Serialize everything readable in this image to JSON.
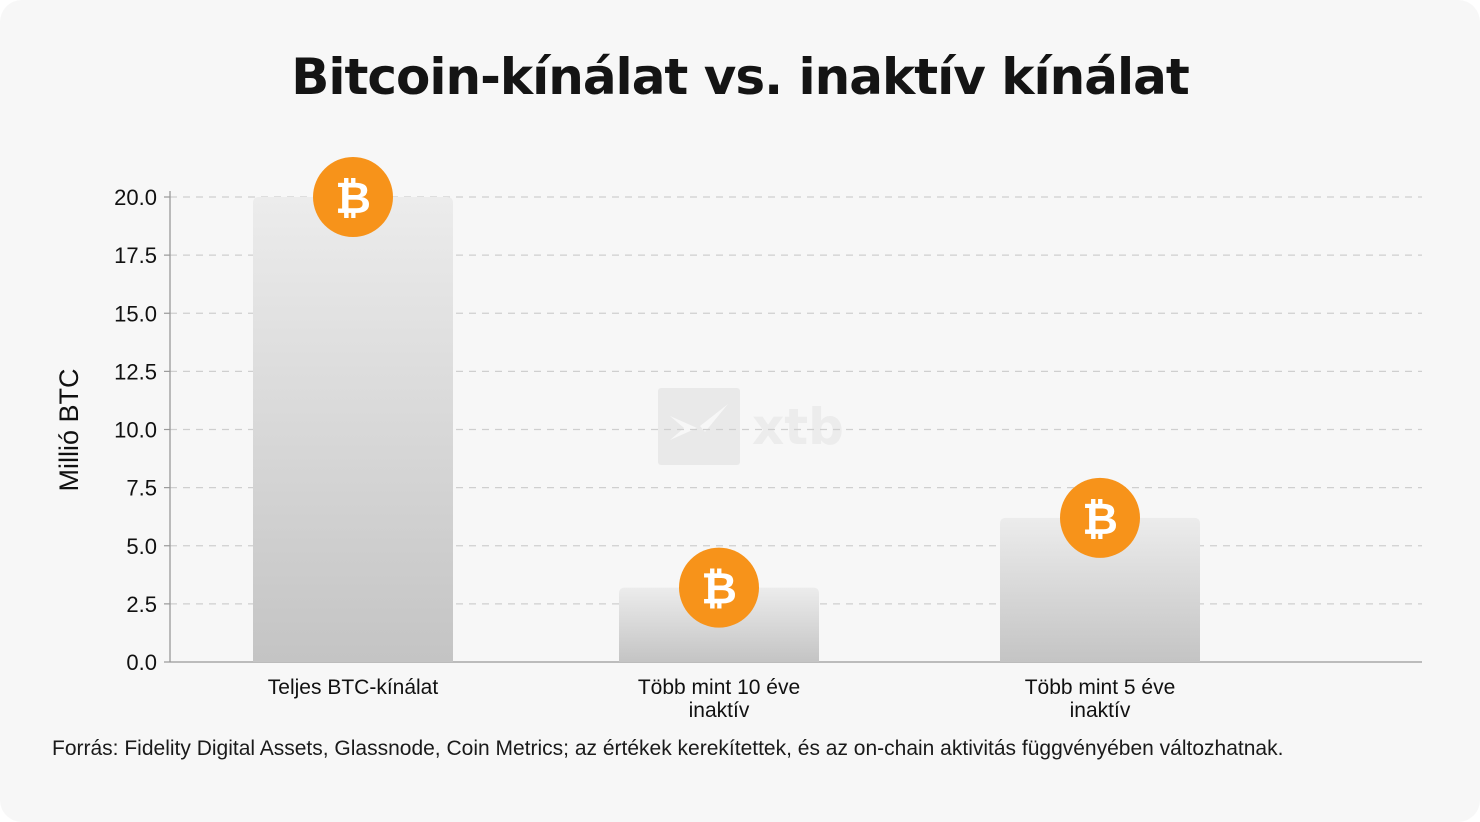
{
  "title": "Bitcoin-kínálat vs. inaktív kínálat",
  "watermark": "xtb",
  "source_note": "Forrás: Fidelity Digital Assets, Glassnode, Coin Metrics; az értékek kerekítettek, és az on-chain aktivitás függvényében változhatnak.",
  "coin_symbol": "₿",
  "colors": {
    "coin": "#F7931A",
    "bar_top": "#ececec",
    "bar_bottom": "#c4c4c4",
    "grid": "#cfcfcf"
  },
  "chart_data": {
    "type": "bar",
    "categories": [
      [
        "Teljes BTC-kínálat"
      ],
      [
        "Több mint 10 éve",
        "inaktív"
      ],
      [
        "Több mint 5 éve",
        "inaktív"
      ]
    ],
    "values": [
      20.0,
      3.2,
      6.2
    ],
    "ylabel": "Millió BTC",
    "xlabel": "",
    "ylim": [
      0,
      20
    ],
    "yticks": [
      "0.0",
      "2.5",
      "5.0",
      "7.5",
      "10.0",
      "12.5",
      "15.0",
      "17.5",
      "20.0"
    ],
    "grid": true,
    "icon": "bitcoin-icon"
  }
}
